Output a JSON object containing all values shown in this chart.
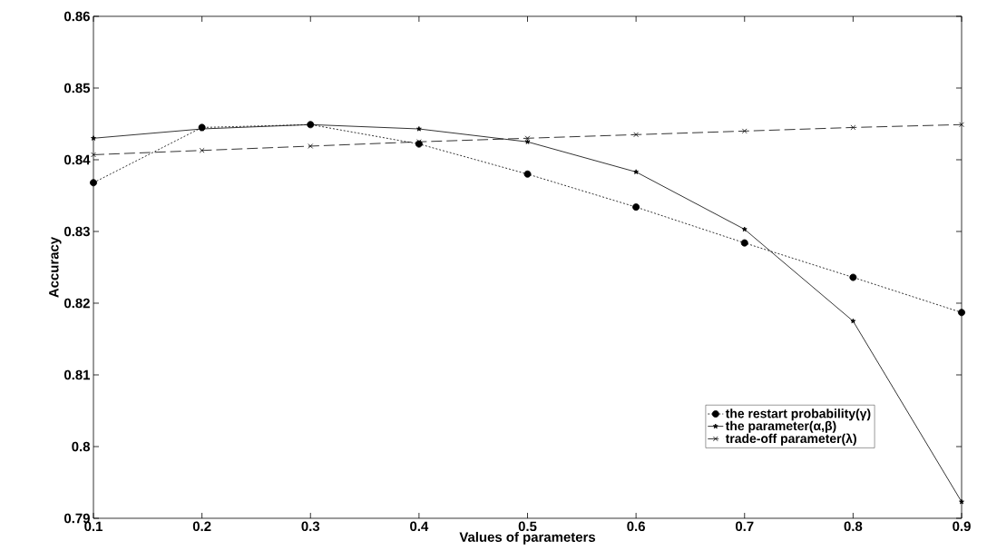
{
  "chart_data": {
    "type": "line",
    "xlabel": "Values of parameters",
    "ylabel": "Accuracy",
    "x": [
      0.1,
      0.2,
      0.3,
      0.4,
      0.5,
      0.6,
      0.7,
      0.8,
      0.9
    ],
    "series": [
      {
        "name": "the restart probability(γ)",
        "color": "#000000",
        "marker": "circle",
        "line_style": "dotted",
        "values": [
          0.8368,
          0.8445,
          0.8449,
          0.8422,
          0.838,
          0.8334,
          0.8284,
          0.8236,
          0.8187
        ]
      },
      {
        "name": "the parameter(α,β)",
        "color": "#000000",
        "marker": "star",
        "line_style": "solid",
        "values": [
          0.843,
          0.8443,
          0.8449,
          0.8443,
          0.8425,
          0.8383,
          0.8303,
          0.8175,
          0.7923
        ]
      },
      {
        "name": "trade-off parameter(λ)",
        "color": "#000000",
        "marker": "cross",
        "line_style": "dashed",
        "values": [
          0.8407,
          0.8413,
          0.8419,
          0.8425,
          0.843,
          0.8435,
          0.844,
          0.8445,
          0.8449
        ]
      }
    ],
    "xlim": [
      0.1,
      0.9
    ],
    "ylim": [
      0.79,
      0.86
    ],
    "xticks": [
      0.1,
      0.2,
      0.3,
      0.4,
      0.5,
      0.6,
      0.7,
      0.8,
      0.9
    ],
    "yticks": [
      0.79,
      0.8,
      0.81,
      0.82,
      0.83,
      0.84,
      0.85,
      0.86
    ],
    "grid": false,
    "legend": "bottom right"
  }
}
